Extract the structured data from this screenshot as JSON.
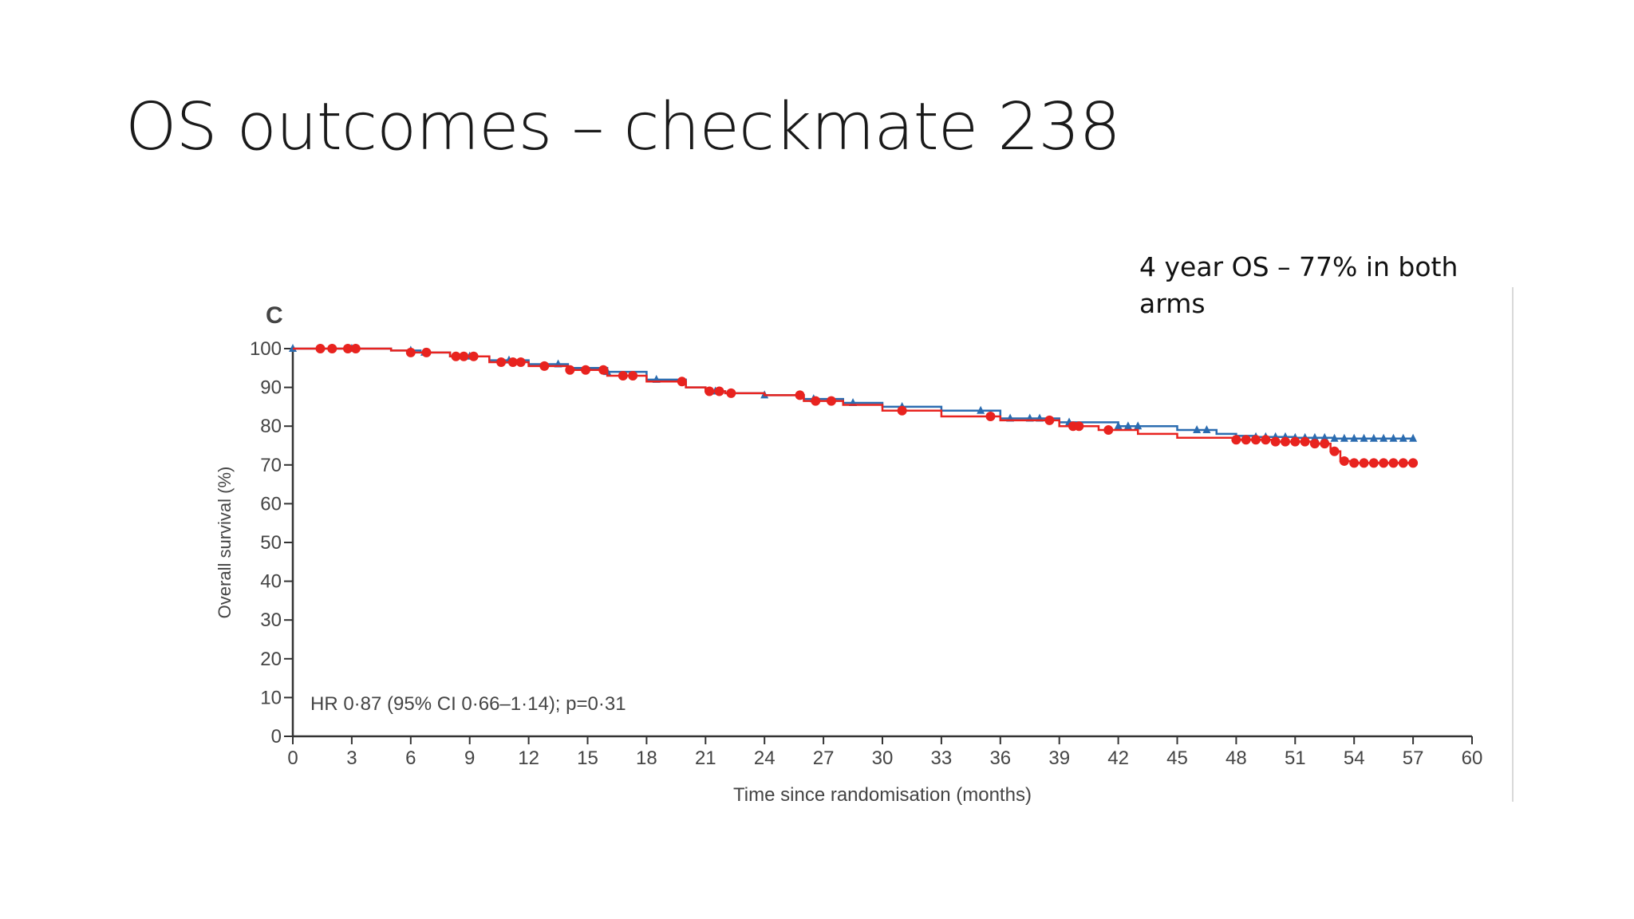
{
  "slide": {
    "title": "OS outcomes  – checkmate 238",
    "annotation_lines": [
      "4 year OS – 77% in both",
      "arms"
    ]
  },
  "colors": {
    "series_a": "#2b6cb0",
    "series_b": "#e8231f",
    "axis": "#333333"
  },
  "chart_data": {
    "type": "line",
    "panel_label": "C",
    "xlabel": "Time since randomisation (months)",
    "ylabel": "Overall survival (%)",
    "xlim": [
      0,
      60
    ],
    "ylim": [
      0,
      100
    ],
    "xticks": [
      0,
      3,
      6,
      9,
      12,
      15,
      18,
      21,
      24,
      27,
      30,
      33,
      36,
      39,
      42,
      45,
      48,
      51,
      54,
      57,
      60
    ],
    "yticks": [
      0,
      10,
      20,
      30,
      40,
      50,
      60,
      70,
      80,
      90,
      100
    ],
    "annotation": "HR 0·87 (95% CI 0·66–1·14); p=0·31",
    "grid": false,
    "legend": "none",
    "series": [
      {
        "color": "#2b6cb0",
        "marker": "triangle",
        "x": [
          0,
          3,
          5,
          6.5,
          8,
          10,
          12,
          14,
          16,
          18,
          20,
          21,
          22,
          24,
          26,
          28,
          30,
          33,
          36,
          39,
          42,
          45,
          47,
          48,
          49,
          51,
          53,
          55,
          57
        ],
        "y": [
          100,
          100,
          99.5,
          99,
          98,
          97,
          96,
          95,
          94,
          92,
          90,
          89,
          88.5,
          88,
          87,
          86,
          85,
          84,
          82,
          81,
          80,
          79,
          78,
          77.5,
          77.2,
          77,
          76.8,
          76.8,
          76.8
        ],
        "censor_x": [
          0,
          2,
          3,
          6,
          6.7,
          9,
          11,
          13.5,
          16,
          18.5,
          21.5,
          24,
          26.5,
          28.5,
          31,
          35,
          36.5,
          37.5,
          38,
          39.5,
          42,
          42.5,
          43,
          46,
          46.5,
          49,
          49.5,
          50,
          50.5,
          51,
          51.5,
          52,
          52.5,
          53,
          53.5,
          54,
          54.5,
          55,
          55.5,
          56,
          56.5,
          57
        ]
      },
      {
        "color": "#e8231f",
        "marker": "circle",
        "x": [
          0,
          3,
          5,
          6,
          8,
          10,
          12,
          14,
          16,
          18,
          20,
          21,
          22,
          24,
          26,
          28,
          30,
          33,
          36,
          39,
          41,
          43,
          45,
          48,
          50,
          52,
          52.8,
          53.3,
          54,
          57
        ],
        "y": [
          100,
          100,
          99.5,
          99,
          98,
          96.5,
          95.5,
          94.5,
          93,
          91.5,
          90,
          89,
          88.5,
          88,
          86.5,
          85.5,
          84,
          82.5,
          81.5,
          80,
          79,
          78,
          77,
          76.5,
          76,
          75.5,
          73.5,
          71,
          70.5,
          70.5
        ],
        "censor_x": [
          1.4,
          2,
          2.8,
          3.2,
          6,
          6.8,
          8.3,
          8.7,
          9.2,
          10.6,
          11.2,
          11.6,
          12.8,
          14.1,
          14.9,
          15.8,
          16.8,
          17.3,
          19.8,
          21.2,
          21.7,
          22.3,
          25.8,
          26.6,
          27.4,
          31,
          35.5,
          38.5,
          39.7,
          40,
          41.5,
          48,
          48.5,
          49,
          49.5,
          50,
          50.5,
          51,
          51.5,
          52,
          52.5,
          53,
          53.5,
          54,
          54.5,
          55,
          55.5,
          56,
          56.5,
          57
        ]
      }
    ]
  }
}
